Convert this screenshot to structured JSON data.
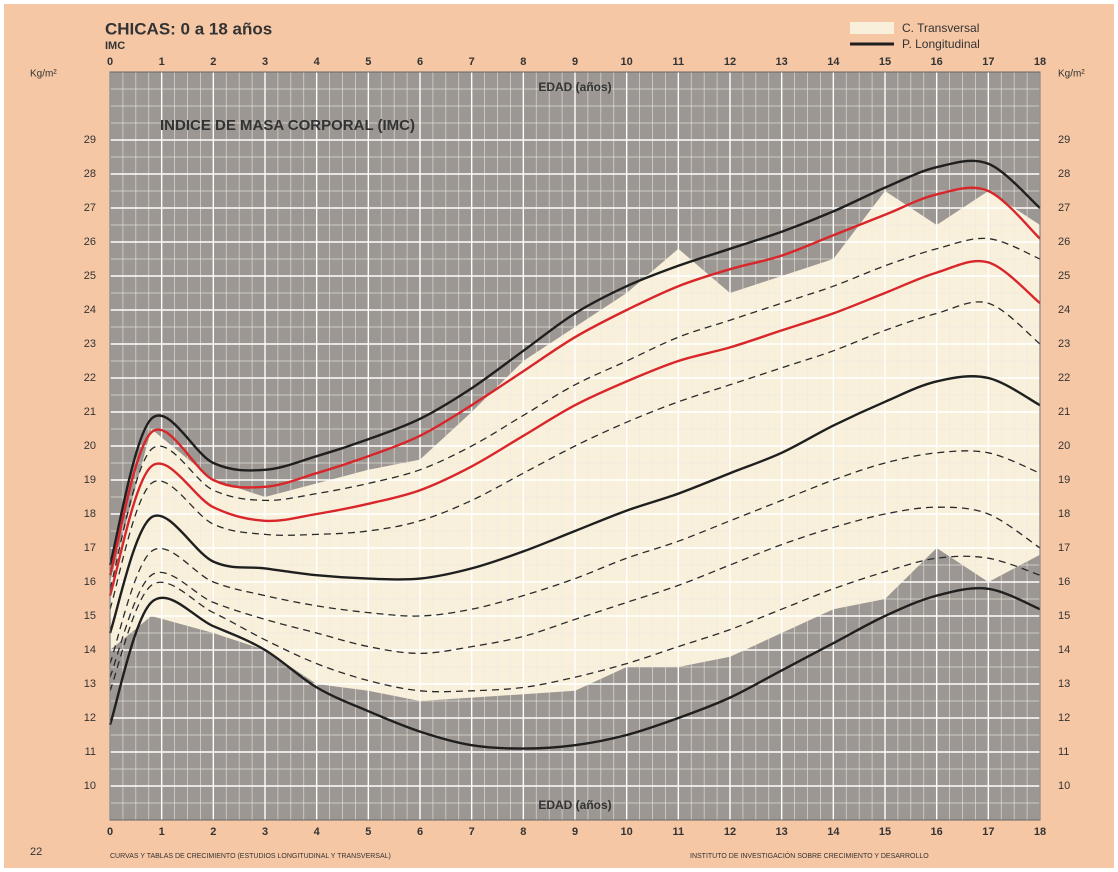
{
  "chart_data": {
    "type": "growth",
    "title": "CHICAS: 0 a 18 años",
    "subtitle": "IMC",
    "heading": "INDICE DE MASA CORPORAL (IMC)",
    "y_label": "Kg/m²",
    "x_label": "EDAD (años)",
    "x": [
      0,
      0.8,
      2,
      3,
      4,
      5,
      6,
      7,
      8,
      9,
      10,
      11,
      12,
      13,
      14,
      15,
      16,
      17,
      18
    ],
    "xlim": [
      0,
      18
    ],
    "xticks": [
      0,
      1,
      2,
      3,
      4,
      5,
      6,
      7,
      8,
      9,
      10,
      11,
      12,
      13,
      14,
      15,
      16,
      17,
      18
    ],
    "ylim": [
      9,
      31
    ],
    "yticks": [
      10,
      11,
      12,
      13,
      14,
      15,
      16,
      17,
      18,
      19,
      20,
      21,
      22,
      23,
      24,
      25,
      26,
      27,
      28,
      29
    ],
    "y2lim": [
      9,
      31
    ],
    "y2ticks": [
      10,
      11,
      12,
      13,
      14,
      15,
      16,
      17,
      18,
      19,
      20,
      21,
      22,
      23,
      24,
      25,
      26,
      27,
      28,
      29
    ],
    "grid": true,
    "minor_x": 4,
    "minor_y": 2,
    "area": {
      "name": "C. Transversal",
      "color": "#f8f0da",
      "upper": [
        16,
        20.5,
        19,
        18.5,
        18.9,
        19.3,
        19.6,
        21,
        22.5,
        23.5,
        24.5,
        25.8,
        24.5,
        25,
        25.5,
        27.5,
        26.5,
        27.5,
        26.5
      ],
      "lower": [
        14,
        15,
        14.5,
        14,
        13,
        12.8,
        12.5,
        12.6,
        12.7,
        12.8,
        13.5,
        13.5,
        13.8,
        14.5,
        15.2,
        15.5,
        17,
        16,
        16.8
      ]
    },
    "line_legend": {
      "name": "P. Longitudinal",
      "color": "#1f1f1f"
    },
    "series": [
      {
        "color": "#1f1f1f",
        "dash": false,
        "values": [
          16.5,
          20.8,
          19.5,
          19.3,
          19.7,
          20.2,
          20.8,
          21.7,
          22.8,
          23.9,
          24.7,
          25.3,
          25.8,
          26.3,
          26.9,
          27.6,
          28.2,
          28.3,
          27.0
        ]
      },
      {
        "color": "#d8262a",
        "dash": false,
        "values": [
          16.2,
          20.4,
          19.0,
          18.8,
          19.2,
          19.7,
          20.3,
          21.2,
          22.2,
          23.2,
          24.0,
          24.7,
          25.2,
          25.6,
          26.2,
          26.8,
          27.4,
          27.5,
          26.1
        ]
      },
      {
        "color": "#2a2a2a",
        "dash": true,
        "values": [
          15.8,
          19.9,
          18.7,
          18.4,
          18.6,
          18.9,
          19.3,
          20.0,
          20.9,
          21.8,
          22.5,
          23.2,
          23.7,
          24.2,
          24.7,
          25.3,
          25.8,
          26.1,
          25.5
        ]
      },
      {
        "color": "#d8262a",
        "dash": false,
        "values": [
          15.6,
          19.4,
          18.2,
          17.8,
          18.0,
          18.3,
          18.7,
          19.4,
          20.3,
          21.2,
          21.9,
          22.5,
          22.9,
          23.4,
          23.9,
          24.5,
          25.1,
          25.4,
          24.2
        ]
      },
      {
        "color": "#2a2a2a",
        "dash": true,
        "values": [
          15.2,
          18.9,
          17.7,
          17.4,
          17.4,
          17.5,
          17.8,
          18.4,
          19.2,
          20.0,
          20.7,
          21.3,
          21.8,
          22.3,
          22.8,
          23.4,
          23.9,
          24.2,
          23.0
        ]
      },
      {
        "color": "#1f1f1f",
        "dash": false,
        "values": [
          14.5,
          17.9,
          16.6,
          16.4,
          16.2,
          16.1,
          16.1,
          16.4,
          16.9,
          17.5,
          18.1,
          18.6,
          19.2,
          19.8,
          20.6,
          21.3,
          21.9,
          22.0,
          21.2
        ]
      },
      {
        "color": "#2a2a2a",
        "dash": true,
        "values": [
          13.6,
          16.9,
          16.0,
          15.6,
          15.3,
          15.1,
          15.0,
          15.2,
          15.6,
          16.1,
          16.7,
          17.2,
          17.8,
          18.4,
          19.0,
          19.5,
          19.8,
          19.8,
          19.2
        ]
      },
      {
        "color": "#2a2a2a",
        "dash": true,
        "values": [
          13.2,
          16.2,
          15.4,
          14.9,
          14.5,
          14.1,
          13.9,
          14.1,
          14.4,
          14.9,
          15.4,
          15.9,
          16.5,
          17.1,
          17.6,
          18.0,
          18.2,
          18.0,
          17.0
        ]
      },
      {
        "color": "#2a2a2a",
        "dash": true,
        "values": [
          12.8,
          15.9,
          15.1,
          14.3,
          13.6,
          13.1,
          12.8,
          12.8,
          12.9,
          13.2,
          13.6,
          14.1,
          14.6,
          15.2,
          15.8,
          16.3,
          16.7,
          16.7,
          16.2
        ]
      },
      {
        "color": "#1f1f1f",
        "dash": false,
        "values": [
          11.8,
          15.4,
          14.7,
          14.0,
          12.9,
          12.2,
          11.6,
          11.2,
          11.1,
          11.2,
          11.5,
          12.0,
          12.6,
          13.4,
          14.2,
          15.0,
          15.6,
          15.8,
          15.2
        ]
      }
    ],
    "page_number": "22",
    "footer_left": "CURVAS Y TABLAS DE CRECIMIENTO (ESTUDIOS LONGITUDINAL Y TRANSVERSAL)",
    "footer_right": "INSTITUTO DE INVESTIGACIÓN SOBRE CRECIMIENTO Y DESARROLLO"
  }
}
